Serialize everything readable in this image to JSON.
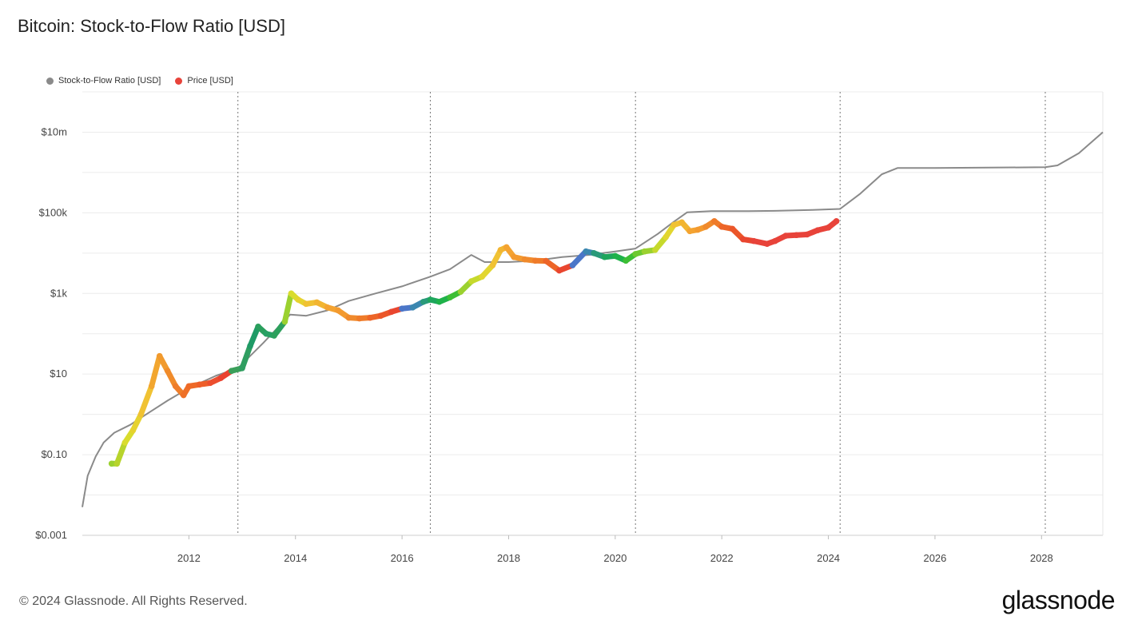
{
  "header": {
    "title": "Bitcoin: Stock-to-Flow Ratio [USD]"
  },
  "footer": {
    "copyright": "© 2024 Glassnode. All Rights Reserved.",
    "brand": "glassnode"
  },
  "colors": {
    "s2f_line": "#8a8a8a",
    "price_legend": "#e8433a",
    "grid": "#ececec",
    "halving_line": "#777777"
  },
  "chart_data": {
    "type": "line",
    "title": "Bitcoin: Stock-to-Flow Ratio [USD]",
    "y_scale": "log",
    "ylim": [
      0.001,
      100000000
    ],
    "xlim": [
      2010.0,
      2029.15
    ],
    "y_ticks": [
      {
        "value": 0.001,
        "label": "$0.001"
      },
      {
        "value": 0.1,
        "label": "$0.10"
      },
      {
        "value": 10,
        "label": "$10"
      },
      {
        "value": 1000,
        "label": "$1k"
      },
      {
        "value": 100000,
        "label": "$100k"
      },
      {
        "value": 10000000,
        "label": "$10m"
      }
    ],
    "x_ticks": [
      {
        "value": 2012,
        "label": "2012"
      },
      {
        "value": 2014,
        "label": "2014"
      },
      {
        "value": 2016,
        "label": "2016"
      },
      {
        "value": 2018,
        "label": "2018"
      },
      {
        "value": 2020,
        "label": "2020"
      },
      {
        "value": 2022,
        "label": "2022"
      },
      {
        "value": 2024,
        "label": "2024"
      },
      {
        "value": 2026,
        "label": "2026"
      },
      {
        "value": 2028,
        "label": "2028"
      }
    ],
    "halvings": [
      2012.92,
      2016.53,
      2020.38,
      2024.22,
      2028.07
    ],
    "legend": "top-left",
    "grid": true,
    "series": [
      {
        "name": "Stock-to-Flow Ratio [USD]",
        "color": "#8a8a8a",
        "x": [
          2010.0,
          2010.1,
          2010.25,
          2010.4,
          2010.6,
          2010.9,
          2011.2,
          2011.6,
          2012.0,
          2012.5,
          2012.92,
          2013.4,
          2013.9,
          2014.2,
          2014.6,
          2015.0,
          2015.5,
          2016.0,
          2016.53,
          2016.9,
          2017.3,
          2017.55,
          2018.0,
          2018.5,
          2019.0,
          2019.5,
          2020.0,
          2020.38,
          2020.8,
          2021.1,
          2021.35,
          2021.8,
          2022.5,
          2023.0,
          2023.7,
          2024.22,
          2024.6,
          2025.0,
          2025.3,
          2026.0,
          2027.0,
          2028.07,
          2028.3,
          2028.7,
          2029.15
        ],
        "y": [
          0.005,
          0.03,
          0.09,
          0.2,
          0.35,
          0.55,
          1.0,
          2.2,
          4.5,
          9,
          14,
          60,
          300,
          280,
          380,
          650,
          1000,
          1500,
          2600,
          4000,
          9000,
          6000,
          6000,
          6500,
          8000,
          9000,
          11000,
          13000,
          30000,
          60000,
          103000,
          110000,
          110000,
          112000,
          118000,
          125000,
          300000,
          900000,
          1300000,
          1300000,
          1320000,
          1350000,
          1500000,
          3000000,
          10000000
        ]
      },
      {
        "name": "Price [USD]",
        "color": "#e8433a",
        "x": [
          2010.55,
          2010.65,
          2010.8,
          2010.95,
          2011.1,
          2011.3,
          2011.45,
          2011.6,
          2011.75,
          2011.9,
          2012.0,
          2012.2,
          2012.4,
          2012.6,
          2012.8,
          2013.0,
          2013.15,
          2013.3,
          2013.45,
          2013.6,
          2013.8,
          2013.92,
          2014.05,
          2014.2,
          2014.4,
          2014.6,
          2014.8,
          2015.0,
          2015.2,
          2015.4,
          2015.6,
          2015.8,
          2016.0,
          2016.2,
          2016.4,
          2016.53,
          2016.7,
          2016.9,
          2017.1,
          2017.3,
          2017.5,
          2017.7,
          2017.85,
          2017.96,
          2018.1,
          2018.3,
          2018.5,
          2018.7,
          2018.95,
          2019.2,
          2019.45,
          2019.6,
          2019.8,
          2020.0,
          2020.2,
          2020.38,
          2020.55,
          2020.75,
          2020.95,
          2021.1,
          2021.25,
          2021.4,
          2021.55,
          2021.7,
          2021.86,
          2022.0,
          2022.2,
          2022.4,
          2022.6,
          2022.85,
          2023.0,
          2023.2,
          2023.4,
          2023.6,
          2023.8,
          2024.0,
          2024.15
        ],
        "y": [
          0.06,
          0.06,
          0.2,
          0.4,
          1.0,
          5,
          28,
          12,
          5,
          3,
          5,
          5.5,
          6,
          8,
          12,
          14,
          50,
          150,
          100,
          90,
          200,
          1000,
          700,
          550,
          600,
          450,
          380,
          250,
          240,
          250,
          280,
          350,
          420,
          450,
          620,
          700,
          620,
          800,
          1100,
          2000,
          2600,
          5000,
          12000,
          14000,
          8000,
          7000,
          6500,
          6400,
          3700,
          5000,
          11000,
          10000,
          8000,
          8500,
          6500,
          9500,
          11000,
          12000,
          25000,
          50000,
          58000,
          35000,
          38000,
          45000,
          62000,
          45000,
          40000,
          22000,
          20000,
          17000,
          20000,
          27000,
          28000,
          29000,
          37000,
          43000,
          62000
        ],
        "colors": [
          "#9bd12f",
          "#b7d42c",
          "#d9dc2d",
          "#e6d22f",
          "#f0c233",
          "#f2a62f",
          "#f19a2d",
          "#f08b2a",
          "#ef7d29",
          "#ee7028",
          "#ee6927",
          "#ee5e29",
          "#ec4e2e",
          "#ea4230",
          "#3a9f5a",
          "#2f9e61",
          "#1f9a66",
          "#2a9f5d",
          "#28a064",
          "#2da05d",
          "#9bd12f",
          "#d9dc2d",
          "#e6d22f",
          "#f0c233",
          "#f2b531",
          "#f4a331",
          "#f39a2f",
          "#f08a2c",
          "#ef7b29",
          "#ed6528",
          "#eb5629",
          "#e9462f",
          "#4b76c8",
          "#3b87b0",
          "#2a9a7a",
          "#1ea65c",
          "#1fb24a",
          "#3dbe35",
          "#9bd12f",
          "#c6d92c",
          "#e2d630",
          "#f0c233",
          "#f2b531",
          "#f4a331",
          "#f39a2f",
          "#f08a2c",
          "#ef7b29",
          "#ed6528",
          "#e9462f",
          "#4b76c8",
          "#3b87b0",
          "#2a9a7a",
          "#1ea65c",
          "#1fb24a",
          "#3dbe35",
          "#6cc92f",
          "#9bd12f",
          "#c6d92c",
          "#e2d630",
          "#f0c233",
          "#f2b531",
          "#f4a331",
          "#f39a2f",
          "#f08a2c",
          "#ef7b29",
          "#ed6528",
          "#eb5629",
          "#e9462f",
          "#e8433a",
          "#e8433a",
          "#e8433a",
          "#e8433a",
          "#e8433a",
          "#e8433a",
          "#e8433a",
          "#e8433a",
          "#e8433a"
        ]
      }
    ]
  }
}
